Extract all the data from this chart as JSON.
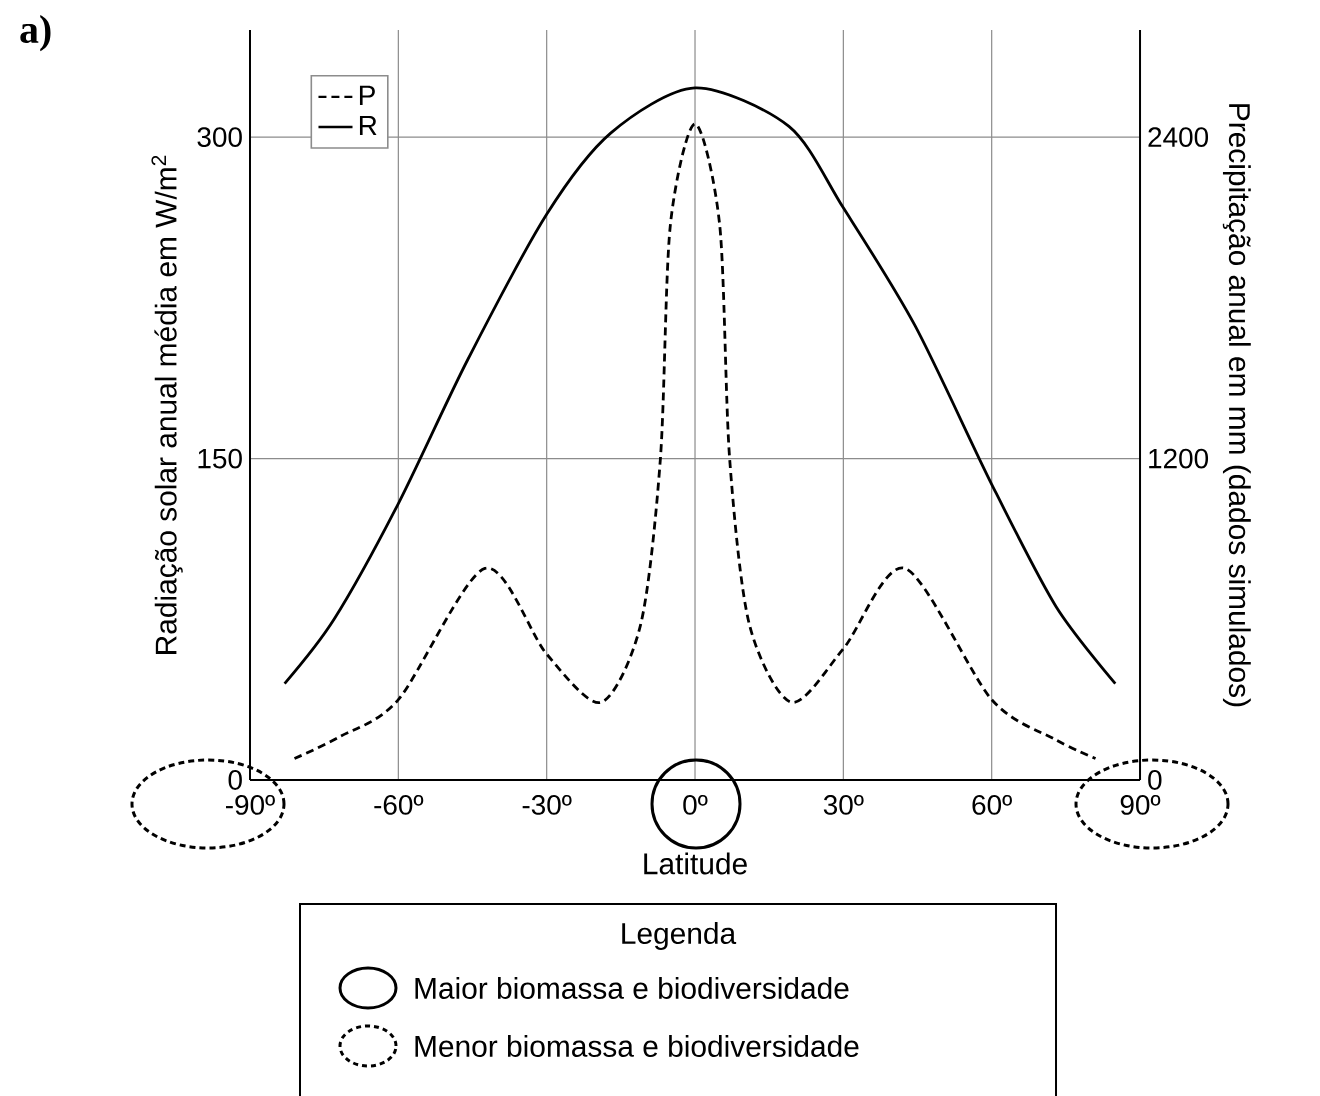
{
  "chart_data": {
    "type": "line",
    "ylabel": "Radiação solar anual média em W/m$^{2}$",
    "y2label": "Precipitação anual em mm (dados simulados)",
    "xlabel": "Latitude",
    "xlim": [
      -90,
      90
    ],
    "xticks": [
      {
        "value": -90,
        "label": "-90º"
      },
      {
        "value": -60,
        "label": "-60º"
      },
      {
        "value": -30,
        "label": "-30º"
      },
      {
        "value": 0,
        "label": "0º"
      },
      {
        "value": 30,
        "label": "30º"
      },
      {
        "value": 60,
        "label": "60º"
      },
      {
        "value": 90,
        "label": "90º"
      }
    ],
    "ylim": [
      0,
      350
    ],
    "yticks": [
      0,
      150,
      300
    ],
    "y2lim": [
      0,
      2800
    ],
    "y2ticks": [
      0,
      1200,
      2400
    ],
    "grid": true,
    "legend": "top left",
    "series": [
      {
        "name": "P",
        "color": "#000000",
        "line_style": "dashed",
        "axis": "y2",
        "x": [
          -81,
          -72,
          -60,
          -42.5,
          -30,
          -19,
          -11,
          -7,
          -5,
          0,
          5,
          7,
          11,
          19.5,
          30,
          42.5,
          60,
          73,
          81
        ],
        "values": [
          80,
          160,
          300,
          790,
          470,
          290,
          580,
          1200,
          2070,
          2450,
          2070,
          1200,
          580,
          290,
          490,
          790,
          300,
          150,
          80
        ]
      },
      {
        "name": "R",
        "color": "#000000",
        "line_style": "solid",
        "x": [
          -83,
          -73,
          -60,
          -46,
          -30,
          -17,
          0,
          19,
          30,
          44.5,
          60,
          73,
          85
        ],
        "values": [
          45,
          75,
          129,
          196,
          264,
          302,
          323,
          305,
          267,
          212,
          138,
          81,
          45
        ]
      }
    ],
    "annotations": [
      "a)",
      "Legenda",
      "Maior biomassa e biodiversidade",
      "Menor biomassa e biodiversidade"
    ]
  }
}
